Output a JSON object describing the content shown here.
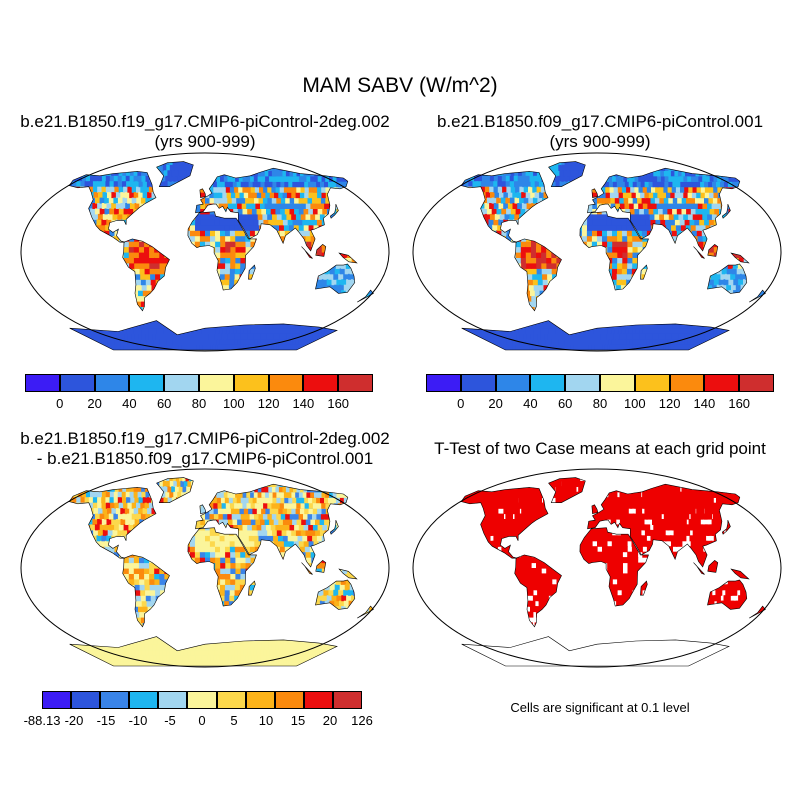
{
  "figure": {
    "title": "MAM SABV (W/m^2)",
    "footnote": "Cells are significant at 0.1 level"
  },
  "panels": {
    "case1": {
      "line1": "b.e21.B1850.f19_g17.CMIP6-piControl-2deg.002",
      "line2": "(yrs 900-999)"
    },
    "case2": {
      "line1": "b.e21.B1850.f09_g17.CMIP6-piControl.001",
      "line2": "(yrs 900-999)"
    },
    "diff": {
      "line1": "b.e21.B1850.f19_g17.CMIP6-piControl-2deg.002",
      "line2": "- b.e21.B1850.f09_g17.CMIP6-piControl.001"
    },
    "ttest": {
      "line1": "T-Test of two Case means at each grid point"
    }
  },
  "colorbars": {
    "absolute": {
      "colors": [
        "#3c1cf5",
        "#2d55dc",
        "#2e86e8",
        "#1eb6f0",
        "#a2d6f0",
        "#fbf59b",
        "#fcc11c",
        "#fb8a0d",
        "#ec0e0e",
        "#cf2e2e"
      ],
      "labels": [
        "0",
        "20",
        "40",
        "60",
        "80",
        "100",
        "120",
        "140",
        "160"
      ]
    },
    "difference": {
      "colors": [
        "#3c1cf5",
        "#2d55dc",
        "#3a84e8",
        "#1eb6f0",
        "#a2d6f0",
        "#fbf59b",
        "#fcd84c",
        "#fcb31a",
        "#fb8a0d",
        "#ec0e0e",
        "#cf2e2e"
      ],
      "labels": [
        "-88.13",
        "-20",
        "-15",
        "-10",
        "-5",
        "0",
        "5",
        "10",
        "15",
        "20",
        "126"
      ]
    }
  },
  "map_colors": {
    "ocean": "#ffffff",
    "outline": "#000000",
    "significant": "#ee0000"
  }
}
